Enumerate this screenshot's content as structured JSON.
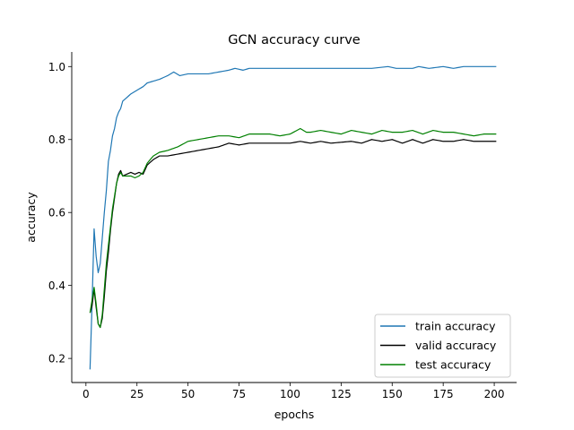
{
  "chart_data": {
    "type": "line",
    "title": "GCN accuracy curve",
    "xlabel": "epochs",
    "ylabel": "accuracy",
    "xlim": [
      -6.95,
      210.95
    ],
    "ylim": [
      0.134,
      1.04
    ],
    "xticks": [
      0,
      25,
      50,
      75,
      100,
      125,
      150,
      175,
      200
    ],
    "yticks": [
      0.2,
      0.4,
      0.6,
      0.8,
      1.0
    ],
    "xtick_labels": [
      "0",
      "25",
      "50",
      "75",
      "100",
      "125",
      "150",
      "175",
      "200"
    ],
    "ytick_labels": [
      "0.2",
      "0.4",
      "0.6",
      "0.8",
      "1.0"
    ],
    "grid": false,
    "legend_position": "lower-right",
    "x": {
      "start": 2,
      "end": 201
    },
    "series": [
      {
        "name": "train accuracy",
        "color": "#1f77b4",
        "keypoints": [
          [
            2,
            0.17
          ],
          [
            3,
            0.35
          ],
          [
            4,
            0.555
          ],
          [
            5,
            0.48
          ],
          [
            6,
            0.435
          ],
          [
            7,
            0.46
          ],
          [
            8,
            0.53
          ],
          [
            9,
            0.6
          ],
          [
            10,
            0.66
          ],
          [
            11,
            0.74
          ],
          [
            12,
            0.77
          ],
          [
            13,
            0.81
          ],
          [
            14,
            0.83
          ],
          [
            15,
            0.86
          ],
          [
            16,
            0.875
          ],
          [
            17,
            0.885
          ],
          [
            18,
            0.905
          ],
          [
            20,
            0.915
          ],
          [
            22,
            0.925
          ],
          [
            25,
            0.935
          ],
          [
            28,
            0.945
          ],
          [
            30,
            0.955
          ],
          [
            33,
            0.96
          ],
          [
            36,
            0.965
          ],
          [
            40,
            0.975
          ],
          [
            43,
            0.985
          ],
          [
            46,
            0.975
          ],
          [
            50,
            0.98
          ],
          [
            60,
            0.98
          ],
          [
            65,
            0.985
          ],
          [
            70,
            0.99
          ],
          [
            73,
            0.995
          ],
          [
            77,
            0.99
          ],
          [
            80,
            0.995
          ],
          [
            100,
            0.995
          ],
          [
            120,
            0.995
          ],
          [
            140,
            0.995
          ],
          [
            148,
            1.0
          ],
          [
            152,
            0.995
          ],
          [
            160,
            0.995
          ],
          [
            163,
            1.0
          ],
          [
            168,
            0.995
          ],
          [
            175,
            1.0
          ],
          [
            180,
            0.995
          ],
          [
            185,
            1.0
          ],
          [
            190,
            1.0
          ],
          [
            195,
            1.0
          ],
          [
            201,
            1.0
          ]
        ]
      },
      {
        "name": "valid accuracy",
        "color": "#000000",
        "keypoints": [
          [
            2,
            0.325
          ],
          [
            3,
            0.345
          ],
          [
            4,
            0.39
          ],
          [
            5,
            0.34
          ],
          [
            6,
            0.295
          ],
          [
            7,
            0.285
          ],
          [
            8,
            0.31
          ],
          [
            9,
            0.37
          ],
          [
            10,
            0.44
          ],
          [
            11,
            0.49
          ],
          [
            12,
            0.55
          ],
          [
            13,
            0.6
          ],
          [
            14,
            0.64
          ],
          [
            15,
            0.68
          ],
          [
            16,
            0.705
          ],
          [
            17,
            0.715
          ],
          [
            18,
            0.7
          ],
          [
            20,
            0.705
          ],
          [
            22,
            0.71
          ],
          [
            24,
            0.705
          ],
          [
            26,
            0.71
          ],
          [
            28,
            0.705
          ],
          [
            30,
            0.73
          ],
          [
            33,
            0.745
          ],
          [
            36,
            0.755
          ],
          [
            40,
            0.755
          ],
          [
            45,
            0.76
          ],
          [
            50,
            0.765
          ],
          [
            55,
            0.77
          ],
          [
            60,
            0.775
          ],
          [
            65,
            0.78
          ],
          [
            70,
            0.79
          ],
          [
            75,
            0.785
          ],
          [
            80,
            0.79
          ],
          [
            90,
            0.79
          ],
          [
            100,
            0.79
          ],
          [
            105,
            0.795
          ],
          [
            110,
            0.79
          ],
          [
            115,
            0.795
          ],
          [
            120,
            0.79
          ],
          [
            130,
            0.795
          ],
          [
            135,
            0.79
          ],
          [
            140,
            0.8
          ],
          [
            145,
            0.795
          ],
          [
            150,
            0.8
          ],
          [
            155,
            0.79
          ],
          [
            160,
            0.8
          ],
          [
            165,
            0.79
          ],
          [
            170,
            0.8
          ],
          [
            175,
            0.795
          ],
          [
            180,
            0.795
          ],
          [
            185,
            0.8
          ],
          [
            190,
            0.795
          ],
          [
            195,
            0.795
          ],
          [
            201,
            0.795
          ]
        ]
      },
      {
        "name": "test accuracy",
        "color": "#008000",
        "keypoints": [
          [
            2,
            0.325
          ],
          [
            3,
            0.36
          ],
          [
            4,
            0.395
          ],
          [
            5,
            0.35
          ],
          [
            6,
            0.295
          ],
          [
            7,
            0.285
          ],
          [
            8,
            0.32
          ],
          [
            9,
            0.39
          ],
          [
            10,
            0.46
          ],
          [
            11,
            0.51
          ],
          [
            12,
            0.56
          ],
          [
            13,
            0.61
          ],
          [
            14,
            0.645
          ],
          [
            15,
            0.68
          ],
          [
            16,
            0.7
          ],
          [
            17,
            0.71
          ],
          [
            18,
            0.7
          ],
          [
            20,
            0.7
          ],
          [
            22,
            0.7
          ],
          [
            24,
            0.695
          ],
          [
            26,
            0.7
          ],
          [
            28,
            0.71
          ],
          [
            30,
            0.735
          ],
          [
            33,
            0.755
          ],
          [
            36,
            0.765
          ],
          [
            40,
            0.77
          ],
          [
            45,
            0.78
          ],
          [
            50,
            0.795
          ],
          [
            55,
            0.8
          ],
          [
            60,
            0.805
          ],
          [
            65,
            0.81
          ],
          [
            70,
            0.81
          ],
          [
            75,
            0.805
          ],
          [
            80,
            0.815
          ],
          [
            85,
            0.815
          ],
          [
            90,
            0.815
          ],
          [
            95,
            0.81
          ],
          [
            100,
            0.815
          ],
          [
            105,
            0.83
          ],
          [
            108,
            0.82
          ],
          [
            110,
            0.82
          ],
          [
            115,
            0.825
          ],
          [
            120,
            0.82
          ],
          [
            125,
            0.815
          ],
          [
            130,
            0.825
          ],
          [
            135,
            0.82
          ],
          [
            140,
            0.815
          ],
          [
            145,
            0.825
          ],
          [
            150,
            0.82
          ],
          [
            155,
            0.82
          ],
          [
            160,
            0.825
          ],
          [
            165,
            0.815
          ],
          [
            170,
            0.825
          ],
          [
            175,
            0.82
          ],
          [
            180,
            0.82
          ],
          [
            185,
            0.815
          ],
          [
            190,
            0.81
          ],
          [
            195,
            0.815
          ],
          [
            201,
            0.815
          ]
        ]
      }
    ]
  }
}
